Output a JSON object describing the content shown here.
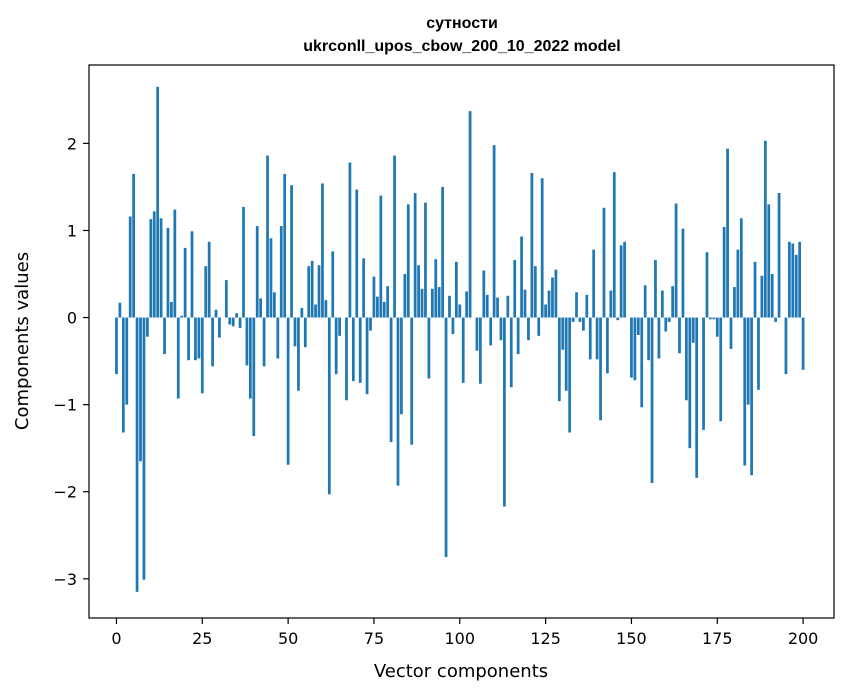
{
  "chart_data": {
    "type": "bar",
    "title": "сутности",
    "subtitle": "ukrconll_upos_cbow_200_10_2022 model",
    "xlabel": "Vector components",
    "ylabel": "Components values",
    "xlim": [
      -8,
      209
    ],
    "ylim": [
      -3.45,
      2.9
    ],
    "xticks": [
      0,
      25,
      50,
      75,
      100,
      125,
      150,
      175,
      200
    ],
    "yticks": [
      -3,
      -2,
      -1,
      0,
      1,
      2
    ],
    "grid": false,
    "bar_color": "#1f77b4",
    "values": [
      -0.65,
      0.17,
      -1.32,
      -1.0,
      1.16,
      1.65,
      -3.15,
      -1.65,
      -3.01,
      -0.22,
      1.13,
      1.22,
      2.65,
      1.14,
      -0.42,
      1.03,
      0.18,
      1.24,
      -0.93,
      0.02,
      0.8,
      -0.49,
      0.99,
      -0.49,
      -0.47,
      -0.87,
      0.59,
      0.87,
      -0.56,
      0.09,
      -0.23,
      0.0,
      0.43,
      -0.08,
      -0.1,
      0.05,
      -0.12,
      1.27,
      -0.55,
      -0.93,
      -1.36,
      1.05,
      0.22,
      -0.56,
      1.86,
      0.91,
      0.29,
      -0.47,
      1.05,
      1.65,
      -1.69,
      1.52,
      -0.33,
      -0.84,
      0.11,
      -0.34,
      0.59,
      0.65,
      0.15,
      0.6,
      1.54,
      0.2,
      -2.03,
      0.76,
      -0.65,
      -0.21,
      0.0,
      -0.95,
      1.78,
      -0.73,
      1.47,
      -0.75,
      0.68,
      -0.88,
      -0.15,
      0.47,
      0.24,
      1.4,
      0.18,
      0.36,
      -1.43,
      1.86,
      -1.93,
      -1.11,
      0.5,
      1.3,
      -1.46,
      1.43,
      0.6,
      0.33,
      1.32,
      -0.7,
      0.33,
      0.67,
      0.35,
      1.5,
      -2.75,
      0.25,
      -0.19,
      0.64,
      0.15,
      -0.75,
      0.3,
      2.37,
      0.0,
      -0.38,
      -0.76,
      0.54,
      0.26,
      -0.32,
      1.98,
      0.23,
      -0.26,
      -2.17,
      0.25,
      -0.8,
      0.66,
      -0.42,
      0.93,
      0.32,
      -0.26,
      1.66,
      0.59,
      -0.21,
      1.6,
      0.15,
      0.31,
      0.46,
      0.55,
      -0.96,
      -0.37,
      -0.84,
      -1.32,
      -0.05,
      0.29,
      -0.05,
      -0.15,
      0.26,
      -0.48,
      0.78,
      -0.48,
      -1.18,
      1.26,
      -0.64,
      0.31,
      1.67,
      -0.03,
      0.83,
      0.87,
      0.0,
      -0.69,
      -0.72,
      -0.2,
      -1.03,
      0.37,
      -0.49,
      -1.9,
      0.66,
      -0.47,
      0.31,
      -0.16,
      -0.05,
      0.36,
      1.31,
      -0.41,
      1.02,
      -0.95,
      -1.5,
      -0.29,
      -1.84,
      0.0,
      -1.29,
      0.75,
      -0.02,
      -0.02,
      -0.22,
      -1.19,
      1.04,
      1.94,
      -0.36,
      0.35,
      0.78,
      1.14,
      -1.7,
      -1.0,
      -1.81,
      0.64,
      -0.83,
      0.48,
      2.03,
      1.3,
      0.5,
      -0.05,
      1.43,
      0.0,
      -0.65,
      0.87,
      0.85,
      0.72,
      0.87,
      -0.6
    ]
  }
}
